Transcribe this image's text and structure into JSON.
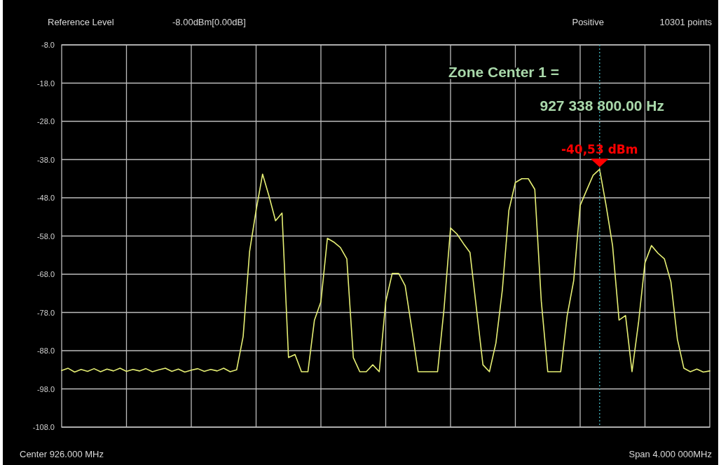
{
  "chart_data": {
    "type": "line",
    "categories": [
      null,
      null,
      null,
      null,
      null,
      null,
      null,
      null,
      null,
      null,
      null,
      null,
      null,
      null,
      null,
      null,
      null,
      null,
      null,
      null,
      null,
      null,
      null,
      null,
      null,
      null,
      null,
      null,
      null,
      null,
      null,
      null,
      null,
      null,
      null,
      null,
      null,
      null,
      null,
      null,
      null,
      null,
      null,
      null,
      null,
      null,
      null,
      null,
      null,
      null,
      null,
      null,
      null,
      null,
      null,
      null,
      null,
      null,
      null,
      null,
      null,
      null,
      null,
      null,
      null,
      null,
      null,
      null,
      null,
      null,
      null,
      null,
      null,
      null,
      null,
      null,
      null,
      null,
      null,
      null,
      null,
      null,
      null,
      null,
      null,
      null,
      null,
      null,
      null,
      null,
      null,
      null,
      null,
      null,
      null,
      null,
      null,
      null,
      null,
      null,
      null
    ],
    "series": [
      {
        "color": "#e6ef74",
        "values": [
          -93.2,
          -92.6,
          -93.6,
          -92.9,
          -93.4,
          -92.7,
          -93.5,
          -92.8,
          -93.3,
          -92.6,
          -93.4,
          -92.9,
          -93.3,
          -92.7,
          -93.5,
          -93.0,
          -92.6,
          -93.4,
          -92.8,
          -93.6,
          -93.1,
          -92.7,
          -93.4,
          -92.9,
          -93.3,
          -92.6,
          -93.5,
          -93.0,
          -84.3,
          -62,
          -51.3,
          -41.8,
          -47.6,
          -54,
          -52,
          -89.8,
          -89.0,
          -93.5,
          -93.5,
          -80,
          -75.2,
          -58.6,
          -59.6,
          -61,
          -64,
          -89.8,
          -93.5,
          -93.5,
          -91.7,
          -93.5,
          -75.2,
          -67.8,
          -67.8,
          -71,
          -82,
          -93.5,
          -93.5,
          -93.5,
          -93.5,
          -77,
          -55.9,
          -57.5,
          -60,
          -62.3,
          -77,
          -91.7,
          -93.5,
          -86,
          -72,
          -51.3,
          -44,
          -43,
          -43,
          -45.8,
          -75,
          -93.5,
          -93.5,
          -93.5,
          -78.8,
          -69.7,
          -50,
          -46,
          -42.1,
          -40.53,
          -50,
          -60.5,
          -80,
          -78.8,
          -93.5,
          -80.7,
          -65,
          -60.5,
          -62.5,
          -64,
          -70,
          -85,
          -92.6,
          -93.5,
          -92.8,
          -93.6,
          -93.3
        ]
      }
    ],
    "ylim": [
      -108,
      -8
    ],
    "yticks": [
      {
        "value": -8,
        "label": "-8.0"
      },
      {
        "value": -18,
        "label": "-18.0"
      },
      {
        "value": -28,
        "label": "-28.0"
      },
      {
        "value": -38,
        "label": "-38.0"
      },
      {
        "value": -48,
        "label": "-48.0"
      },
      {
        "value": -58,
        "label": "-58.0"
      },
      {
        "value": -68,
        "label": "-68.0"
      },
      {
        "value": -78,
        "label": "-78.0"
      },
      {
        "value": -88,
        "label": "-88.0"
      },
      {
        "value": -98,
        "label": "-98.0"
      },
      {
        "value": -108,
        "label": "-108.0"
      }
    ],
    "grid": true,
    "tick_labels": "y",
    "annotations": [
      "Reference Level",
      "-8.00dBm[0.00dB]",
      "Positive",
      "10301 points",
      "Center 926.000 MHz",
      "Span 4.000 000MHz",
      "Zone Center 1 =",
      "927 338 800.00 Hz",
      {
        "text": "-40,53 dBm",
        "y": -40.53
      }
    ]
  }
}
